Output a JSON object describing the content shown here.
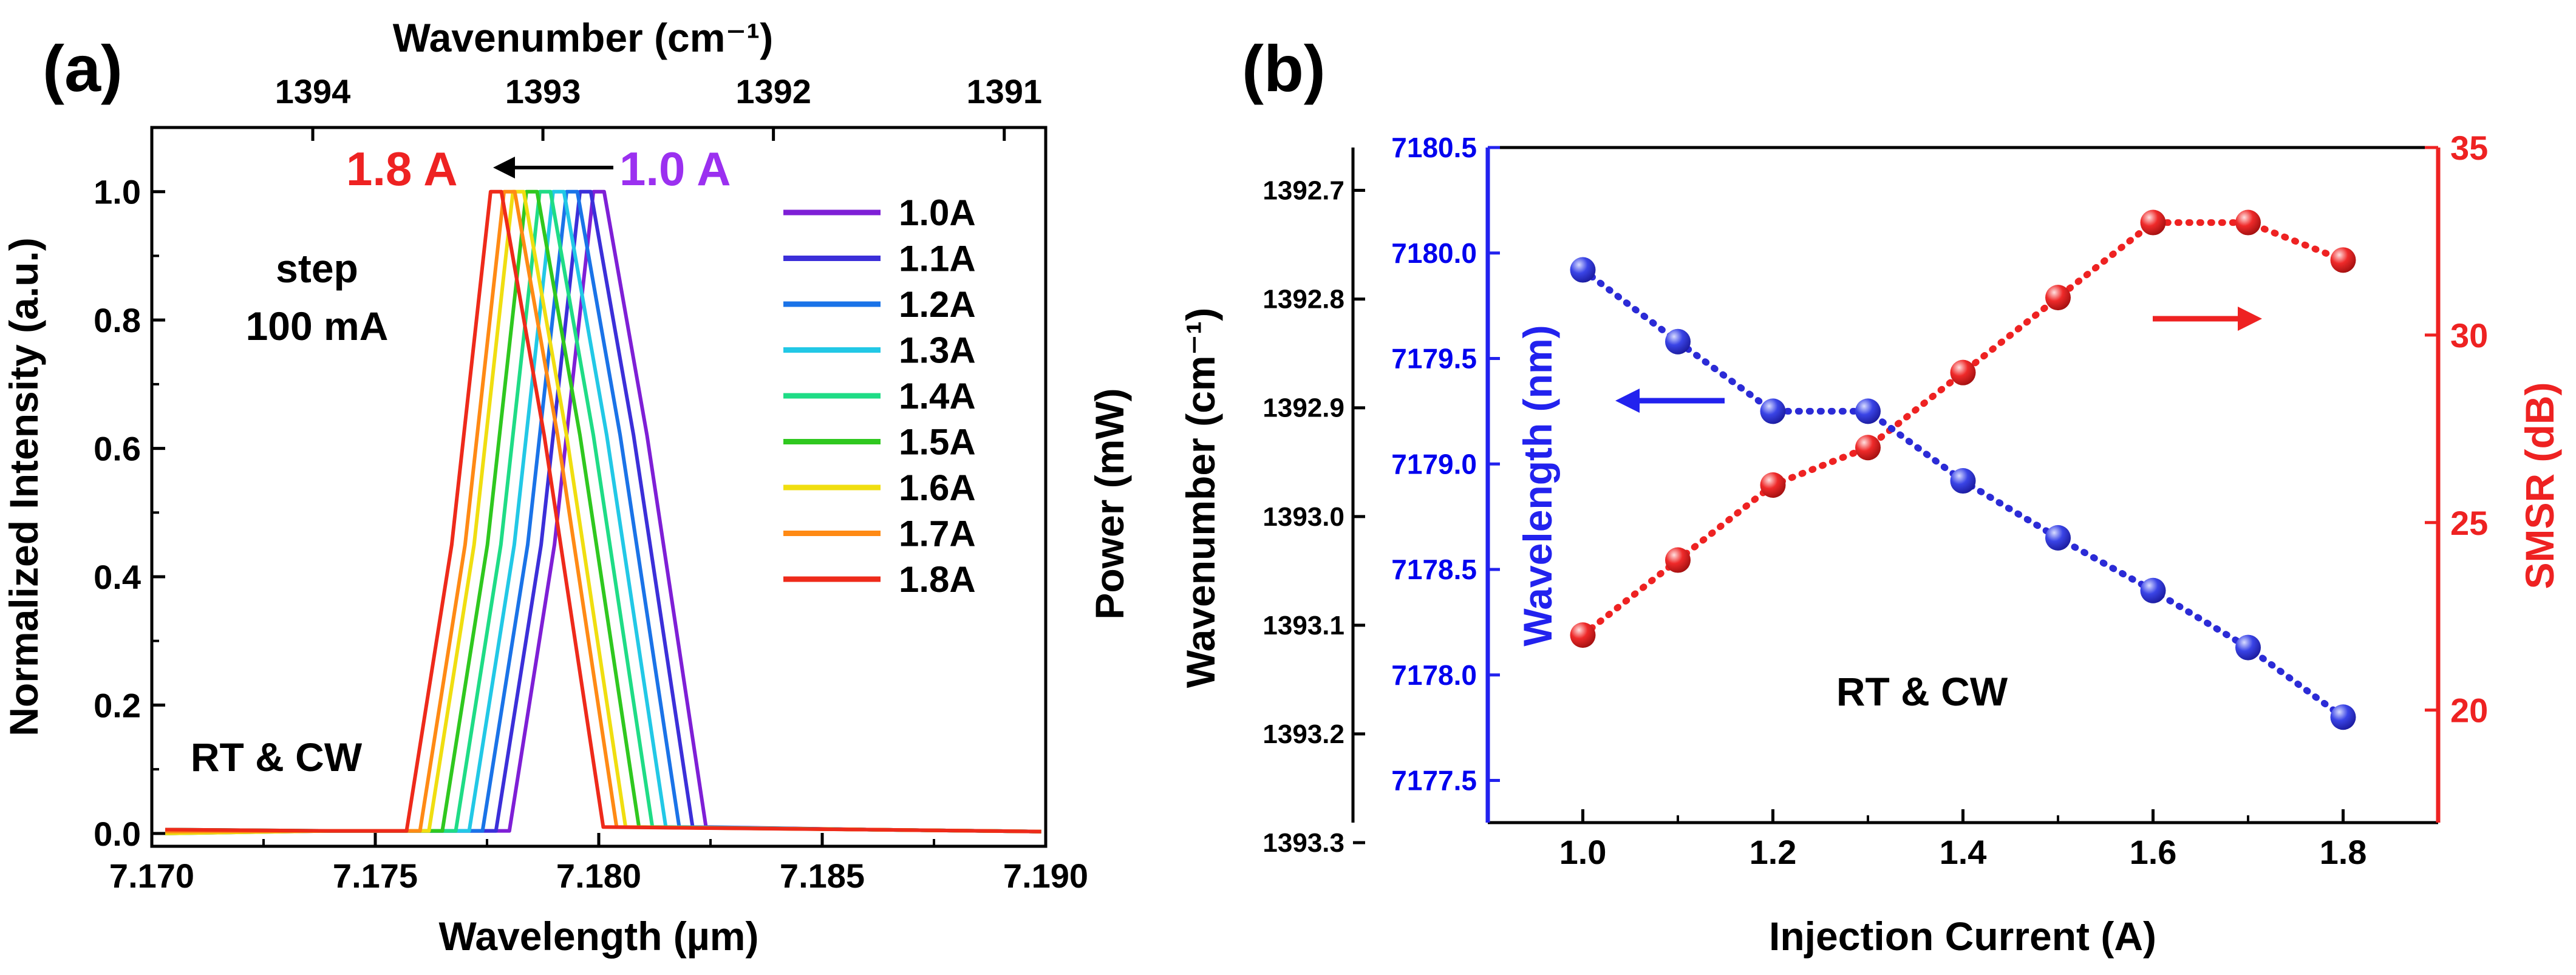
{
  "chart_data": [
    {
      "panel_label": "(a)",
      "type": "line",
      "xlabel": "Wavelength (µm)",
      "ylabel": "Normalized Intensity (a.u.)",
      "top_axis_label": "Wavenumber (cm⁻¹)",
      "x_ticks": [
        "7.170",
        "7.175",
        "7.180",
        "7.185",
        "7.190"
      ],
      "y_ticks": [
        "0.0",
        "0.2",
        "0.4",
        "0.6",
        "0.8",
        "1.0"
      ],
      "top_ticks": [
        "1394",
        "1393",
        "1392",
        "1391"
      ],
      "xlim": [
        7.17,
        7.19
      ],
      "ylim": [
        -0.02,
        1.1
      ],
      "annotations": {
        "shift_from": "1.0 A",
        "shift_to": "1.8 A",
        "step_line1": "step",
        "step_line2": "100 mA",
        "condition": "RT & CW"
      },
      "series": [
        {
          "name": "1.0A",
          "color": "#7e1fd6",
          "peak": 7.18
        },
        {
          "name": "1.1A",
          "color": "#3b2fd9",
          "peak": 7.1797
        },
        {
          "name": "1.2A",
          "color": "#1a73e8",
          "peak": 7.1794
        },
        {
          "name": "1.3A",
          "color": "#22c8e6",
          "peak": 7.1791
        },
        {
          "name": "1.4A",
          "color": "#1fdc86",
          "peak": 7.1788
        },
        {
          "name": "1.5A",
          "color": "#2fc81f",
          "peak": 7.1785
        },
        {
          "name": "1.6A",
          "color": "#f0de10",
          "peak": 7.1782
        },
        {
          "name": "1.7A",
          "color": "#ff8a14",
          "peak": 7.178
        },
        {
          "name": "1.8A",
          "color": "#ee2a1a",
          "peak": 7.1777
        }
      ]
    },
    {
      "panel_label": "(b)",
      "type": "scatter",
      "xlabel": "Injection Current (A)",
      "outer_left_label": "Wavenumber (cm⁻¹)",
      "power_label": "Power (mW)",
      "ylabel_left": "Wavelength (nm)",
      "ylabel_right": "SMSR (dB)",
      "x_ticks": [
        "1.0",
        "1.2",
        "1.4",
        "1.6",
        "1.8"
      ],
      "wavenumber_ticks": [
        "1392.7",
        "1392.8",
        "1392.9",
        "1393.0",
        "1393.1",
        "1393.2",
        "1393.3"
      ],
      "wavelength_ticks": [
        "7180.5",
        "7180.0",
        "7179.5",
        "7179.0",
        "7178.5",
        "7178.0",
        "7177.5"
      ],
      "smsr_ticks": [
        "20",
        "25",
        "30",
        "35"
      ],
      "xlim": [
        0.9,
        1.9
      ],
      "wavelength_ylim": [
        7177.3,
        7180.5
      ],
      "smsr_ylim": [
        17.0,
        35.0
      ],
      "condition": "RT & CW",
      "wavelength_series": {
        "name": "Wavelength (nm)",
        "color": "#2b2bd6",
        "x": [
          1.0,
          1.1,
          1.2,
          1.3,
          1.4,
          1.5,
          1.6,
          1.7,
          1.8
        ],
        "y": [
          7179.92,
          7179.58,
          7179.25,
          7179.25,
          7178.92,
          7178.65,
          7178.4,
          7178.13,
          7177.8
        ]
      },
      "smsr_series": {
        "name": "SMSR (dB)",
        "color": "#ee2222",
        "x": [
          1.0,
          1.1,
          1.2,
          1.3,
          1.4,
          1.5,
          1.6,
          1.7,
          1.8
        ],
        "y": [
          22,
          24,
          26,
          27,
          29,
          31,
          33,
          33,
          32
        ]
      }
    }
  ]
}
